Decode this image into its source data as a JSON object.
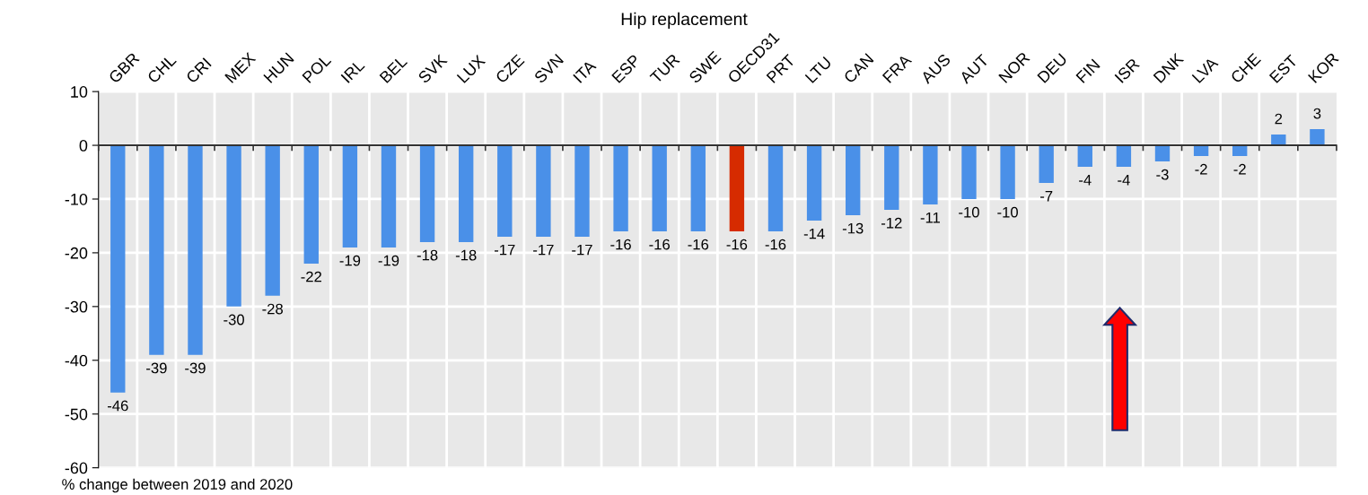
{
  "chart_data": {
    "type": "bar",
    "title": "Hip replacement",
    "categories": [
      "GBR",
      "CHL",
      "CRI",
      "MEX",
      "HUN",
      "POL",
      "IRL",
      "BEL",
      "SVK",
      "LUX",
      "CZE",
      "SVN",
      "ITA",
      "ESP",
      "TUR",
      "SWE",
      "OECD31",
      "PRT",
      "LTU",
      "CAN",
      "FRA",
      "AUS",
      "AUT",
      "NOR",
      "DEU",
      "FIN",
      "ISR",
      "DNK",
      "LVA",
      "CHE",
      "EST",
      "KOR"
    ],
    "values": [
      -46,
      -39,
      -39,
      -30,
      -28,
      -22,
      -19,
      -19,
      -18,
      -18,
      -17,
      -17,
      -17,
      -16,
      -16,
      -16,
      -16,
      -16,
      -14,
      -13,
      -12,
      -11,
      -10,
      -10,
      -7,
      -4,
      -4,
      -3,
      -2,
      -2,
      2,
      3
    ],
    "colors": [
      "#4a90e8",
      "#4a90e8",
      "#4a90e8",
      "#4a90e8",
      "#4a90e8",
      "#4a90e8",
      "#4a90e8",
      "#4a90e8",
      "#4a90e8",
      "#4a90e8",
      "#4a90e8",
      "#4a90e8",
      "#4a90e8",
      "#4a90e8",
      "#4a90e8",
      "#4a90e8",
      "#d62b00",
      "#4a90e8",
      "#4a90e8",
      "#4a90e8",
      "#4a90e8",
      "#4a90e8",
      "#4a90e8",
      "#4a90e8",
      "#4a90e8",
      "#4a90e8",
      "#4a90e8",
      "#4a90e8",
      "#4a90e8",
      "#4a90e8",
      "#4a90e8",
      "#4a90e8"
    ],
    "ylim": [
      -60,
      10
    ],
    "yticks": [
      10,
      0,
      -10,
      -20,
      -30,
      -40,
      -50,
      -60
    ],
    "data_labels": true,
    "grid": true,
    "annotations": [
      "% change between 2019 and 2020"
    ]
  }
}
